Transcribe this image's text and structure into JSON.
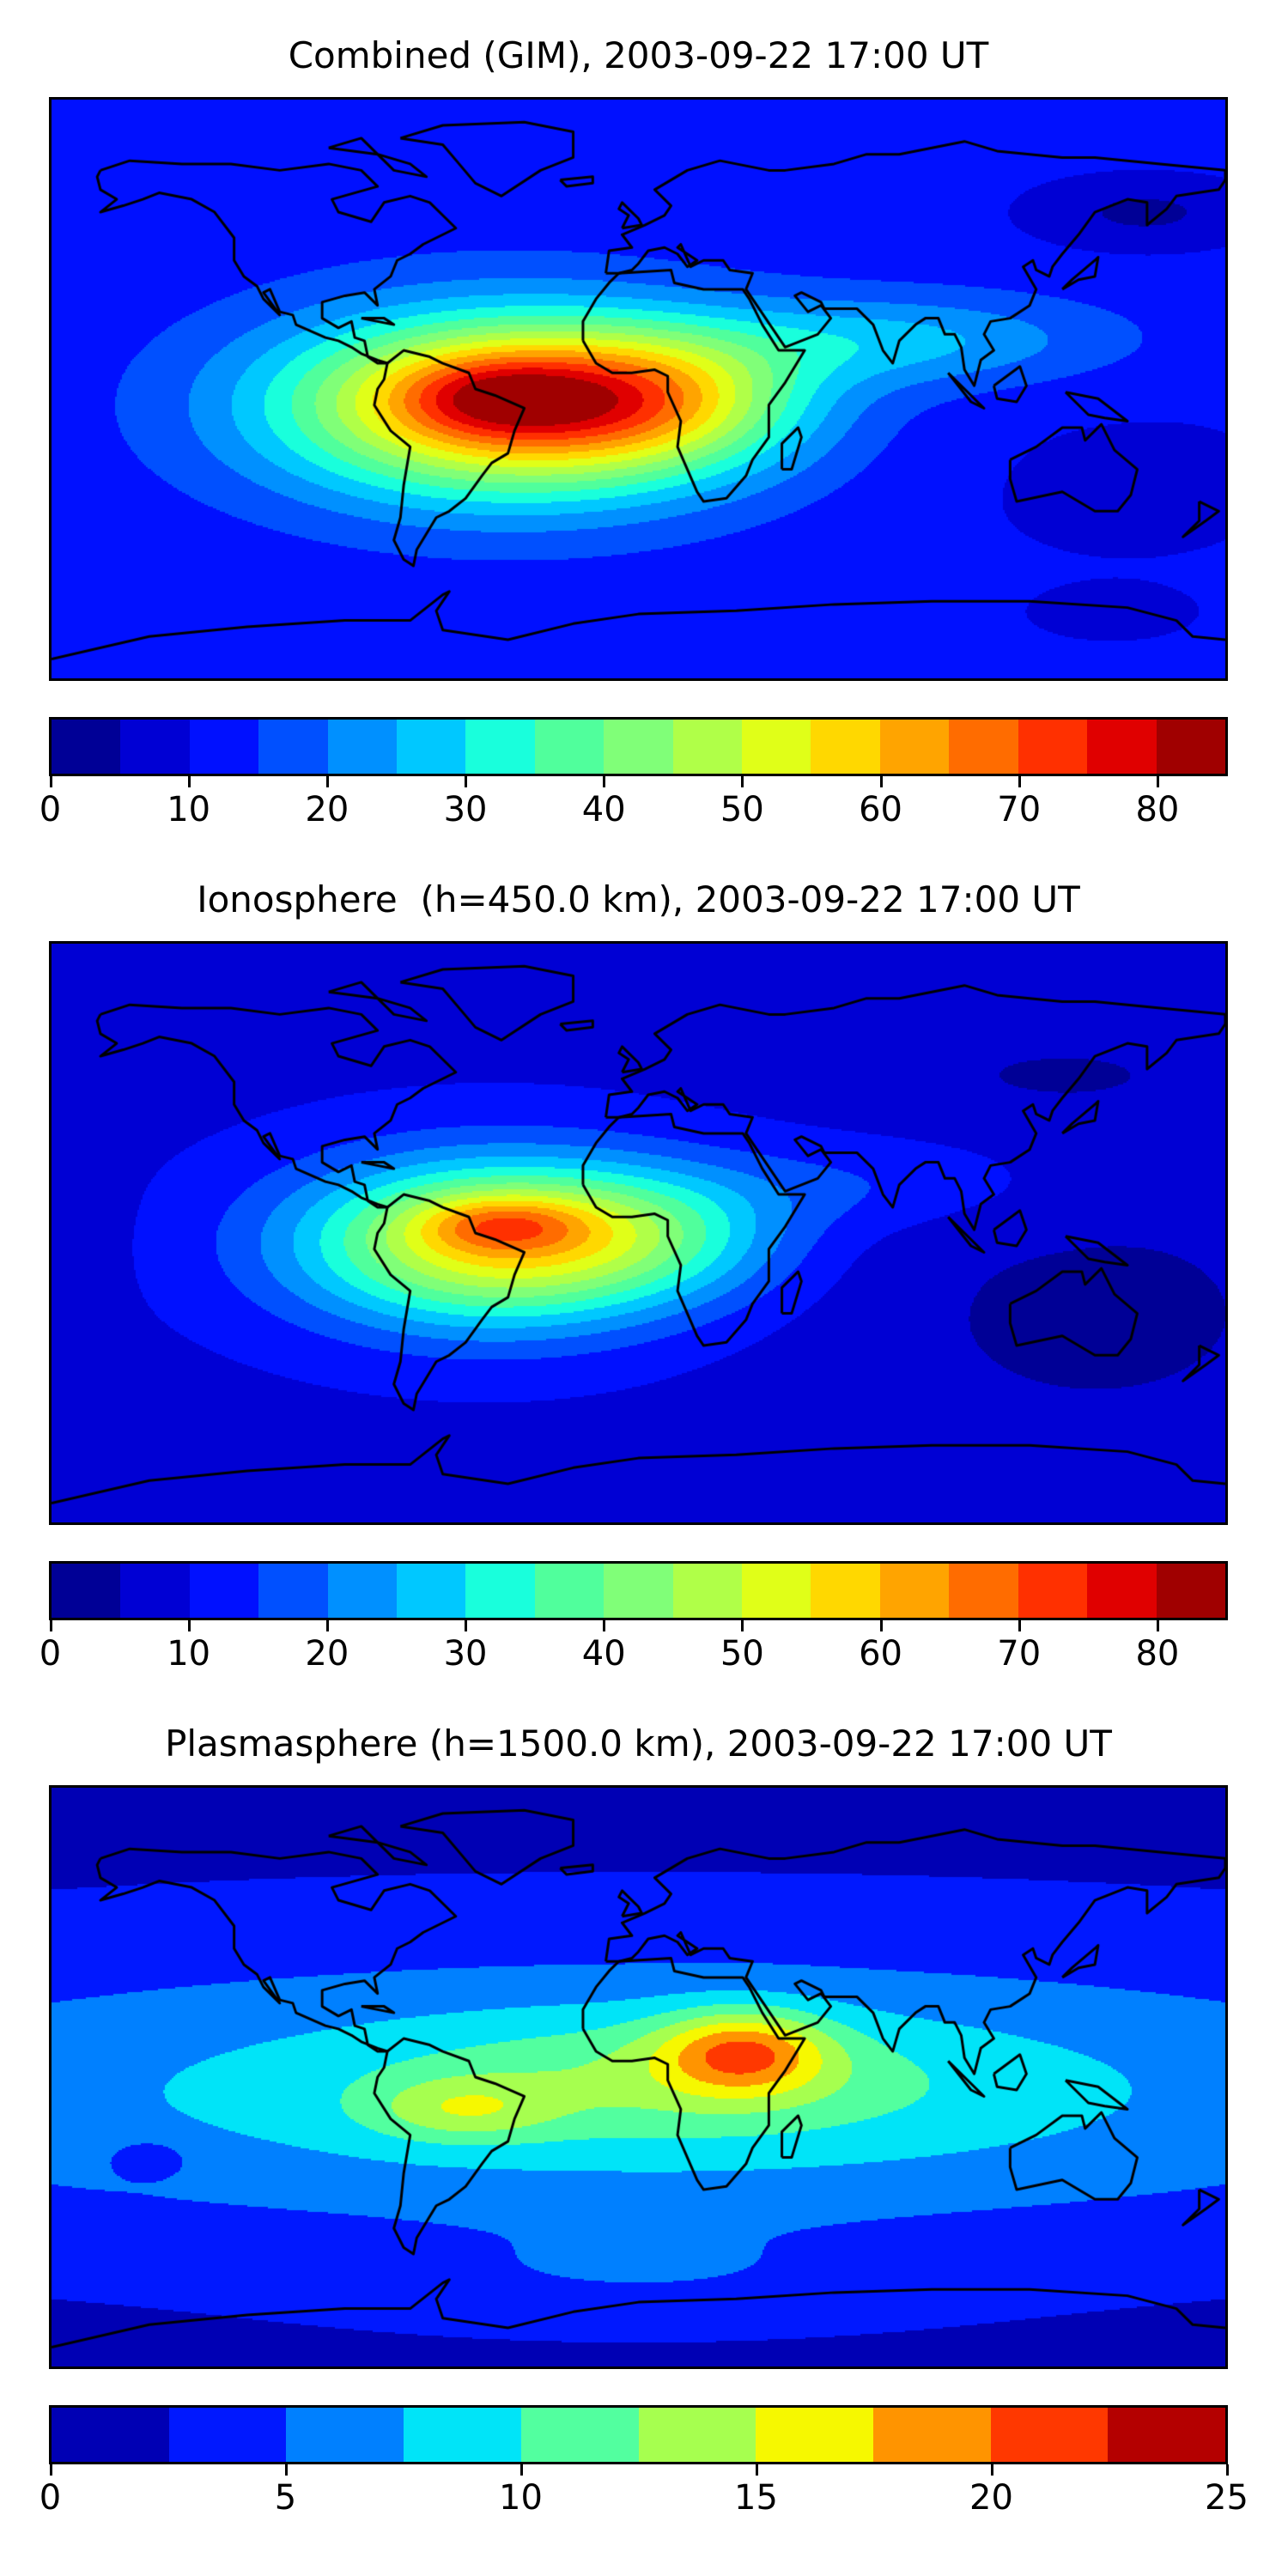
{
  "chart_data": [
    {
      "type": "heatmap",
      "title": "Combined (GIM), 2003-09-22 17:00 UT",
      "projection": "plate-carree",
      "lon_range": [
        -180,
        180
      ],
      "lat_range": [
        -90,
        90
      ],
      "levels": [
        0,
        5,
        10,
        15,
        20,
        25,
        30,
        35,
        40,
        45,
        50,
        55,
        60,
        65,
        70,
        75,
        80,
        85
      ],
      "colors": [
        "#000096",
        "#0000d4",
        "#0010ff",
        "#0050ff",
        "#0090ff",
        "#00c8ff",
        "#19ffdc",
        "#50ff9c",
        "#80ff78",
        "#b0ff48",
        "#e0ff18",
        "#ffd800",
        "#ffa400",
        "#ff6c00",
        "#ff3000",
        "#e00000",
        "#a00000"
      ],
      "colorbar_ticks": [
        "0",
        "10",
        "20",
        "30",
        "40",
        "50",
        "60",
        "70",
        "80"
      ],
      "colorbar_tick_values": [
        0,
        10,
        20,
        30,
        40,
        50,
        60,
        70,
        80
      ],
      "colorbar_range": [
        0,
        85
      ],
      "field_model": {
        "base": 12,
        "components": [
          {
            "lon": -40,
            "lat": -5,
            "slon": 50,
            "slat": 20,
            "amp": 55
          },
          {
            "lon": -45,
            "lat": -2,
            "slon": 22,
            "slat": 9,
            "amp": 16
          },
          {
            "lon": 5,
            "lat": -3,
            "slon": 30,
            "slat": 14,
            "amp": 22
          },
          {
            "lon": 80,
            "lat": 15,
            "slon": 45,
            "slat": 10,
            "amp": 14
          },
          {
            "lon": 155,
            "lat": 55,
            "slon": 25,
            "slat": 8,
            "amp": -8
          },
          {
            "lon": 145,
            "lat": -70,
            "slon": 15,
            "slat": 5,
            "amp": -6
          },
          {
            "lon": 150,
            "lat": -30,
            "slon": 50,
            "slat": 25,
            "amp": -3
          }
        ]
      }
    },
    {
      "type": "heatmap",
      "title": "Ionosphere  (h=450.0 km), 2003-09-22 17:00 UT",
      "projection": "plate-carree",
      "lon_range": [
        -180,
        180
      ],
      "lat_range": [
        -90,
        90
      ],
      "levels": [
        0,
        5,
        10,
        15,
        20,
        25,
        30,
        35,
        40,
        45,
        50,
        55,
        60,
        65,
        70,
        75,
        80,
        85
      ],
      "colors": [
        "#000096",
        "#0000d4",
        "#0010ff",
        "#0050ff",
        "#0090ff",
        "#00c8ff",
        "#19ffdc",
        "#50ff9c",
        "#80ff78",
        "#b0ff48",
        "#e0ff18",
        "#ffd800",
        "#ffa400",
        "#ff6c00",
        "#ff3000",
        "#e00000",
        "#a00000"
      ],
      "colorbar_ticks": [
        "0",
        "10",
        "20",
        "30",
        "40",
        "50",
        "60",
        "70",
        "80"
      ],
      "colorbar_tick_values": [
        0,
        10,
        20,
        30,
        40,
        50,
        60,
        70,
        80
      ],
      "colorbar_range": [
        0,
        85
      ],
      "field_model": {
        "base": 9,
        "components": [
          {
            "lon": -45,
            "lat": -3,
            "slon": 42,
            "slat": 18,
            "amp": 46
          },
          {
            "lon": -42,
            "lat": 3,
            "slon": 18,
            "slat": 6,
            "amp": 16
          },
          {
            "lon": 5,
            "lat": 0,
            "slon": 30,
            "slat": 14,
            "amp": 14
          },
          {
            "lon": 70,
            "lat": 15,
            "slon": 40,
            "slat": 10,
            "amp": 6
          },
          {
            "lon": 140,
            "lat": -25,
            "slon": 60,
            "slat": 35,
            "amp": -5
          },
          {
            "lon": 130,
            "lat": 50,
            "slon": 40,
            "slat": 10,
            "amp": -4
          },
          {
            "lon": -175,
            "lat": 20,
            "slon": 10,
            "slat": 40,
            "amp": -4
          }
        ]
      }
    },
    {
      "type": "heatmap",
      "title": "Plasmasphere (h=1500.0 km), 2003-09-22 17:00 UT",
      "projection": "plate-carree",
      "lon_range": [
        -180,
        180
      ],
      "lat_range": [
        -90,
        90
      ],
      "levels": [
        0,
        2.5,
        5,
        7.5,
        10,
        12.5,
        15,
        17.5,
        20,
        22.5,
        25
      ],
      "colors": [
        "#0000b4",
        "#0018ff",
        "#0080ff",
        "#00e4f8",
        "#52ff9f",
        "#a6ff4f",
        "#f6f800",
        "#ff9400",
        "#ff3800",
        "#b40000"
      ],
      "colorbar_ticks": [
        "0",
        "5",
        "10",
        "15",
        "20",
        "25"
      ],
      "colorbar_tick_values": [
        0,
        5,
        10,
        15,
        20,
        25
      ],
      "colorbar_range": [
        0,
        25
      ],
      "field_model": {
        "base": 2,
        "components": [
          {
            "lon": 0,
            "lat": -5,
            "slon": 200,
            "slat": 30,
            "amp": 7
          },
          {
            "lon": 10,
            "lat": 0,
            "slon": 60,
            "slat": 14,
            "amp": 4
          },
          {
            "lon": 32,
            "lat": 8,
            "slon": 18,
            "slat": 9,
            "amp": 10
          },
          {
            "lon": -55,
            "lat": -10,
            "slon": 20,
            "slat": 7,
            "amp": 5
          },
          {
            "lon": 0,
            "lat": -62,
            "slon": 60,
            "slat": 10,
            "amp": 2
          },
          {
            "lon": -150,
            "lat": -25,
            "slon": 8,
            "slat": 4,
            "amp": -3
          }
        ]
      }
    }
  ]
}
